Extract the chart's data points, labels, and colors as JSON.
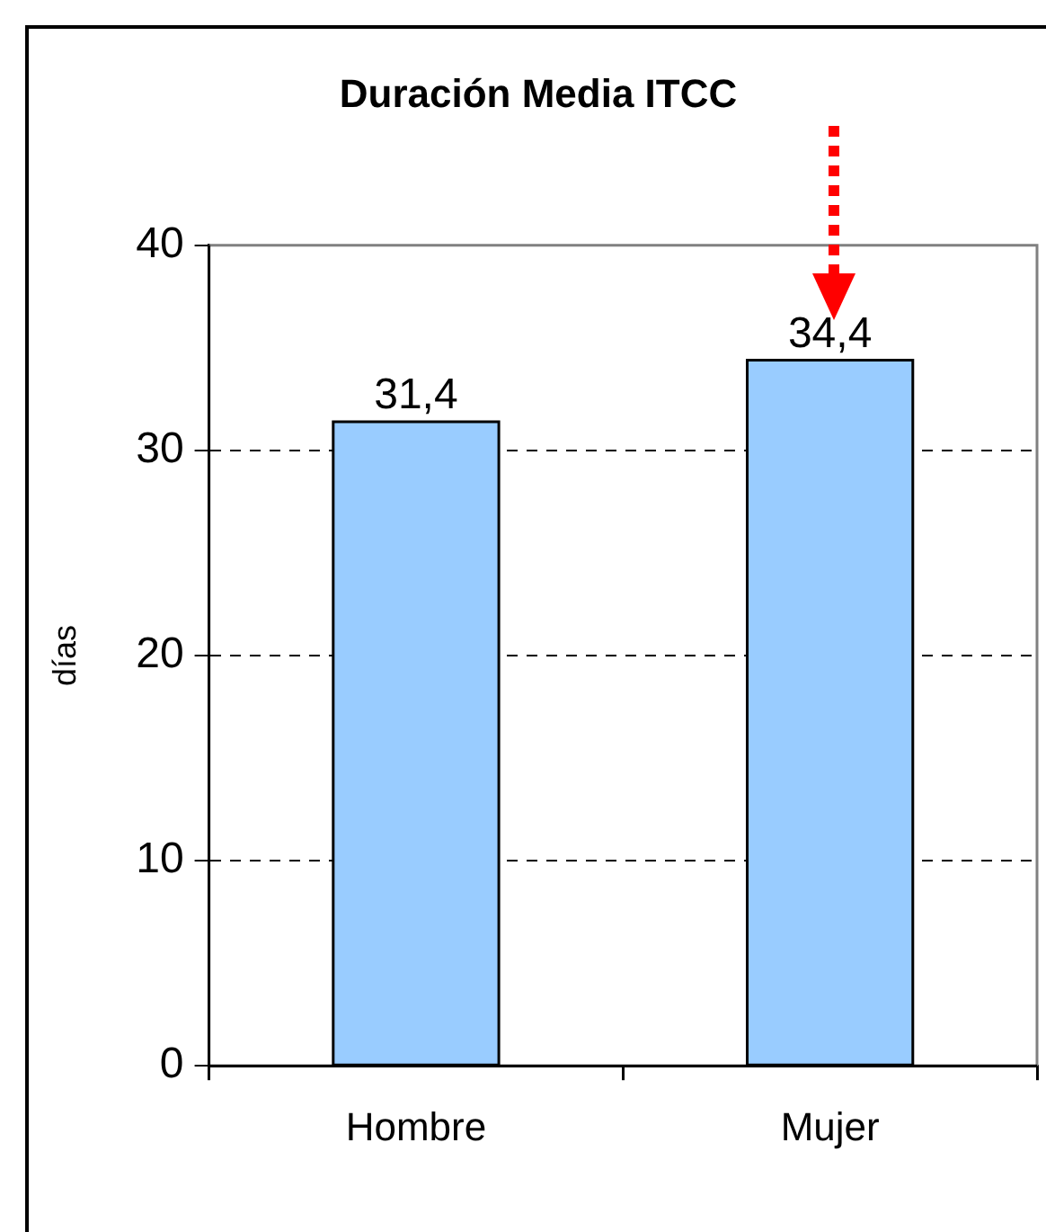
{
  "chart_data": {
    "type": "bar",
    "title": "Duración Media ITCC",
    "ylabel": "días",
    "categories": [
      "Hombre",
      "Mujer"
    ],
    "values": [
      31.4,
      34.4
    ],
    "value_labels": [
      "31,4",
      "34,4"
    ],
    "color": "#99ccff",
    "ylim": [
      0,
      40
    ],
    "yticks": [
      0,
      10,
      20,
      30,
      40
    ],
    "grid": "y",
    "legend": false
  }
}
